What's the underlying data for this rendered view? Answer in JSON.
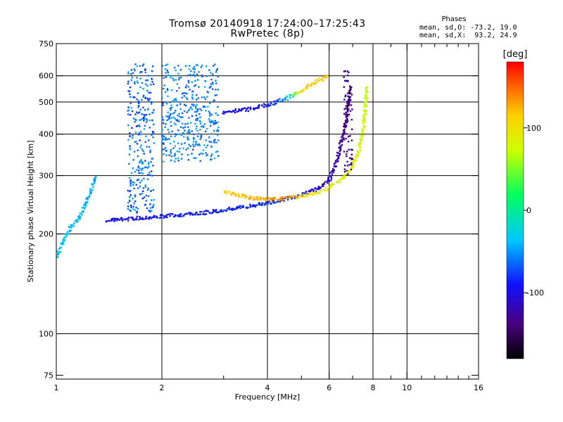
{
  "header": {
    "title": "Tromsø 20140918 17:24:00–17:25:43",
    "subtitle": "RwPretec (8p)"
  },
  "stats": {
    "heading": "Phases",
    "line_o": "mean, sd,O: -73.2, 19.0",
    "line_x": "mean, sd,X:  93.2, 24.9"
  },
  "colorbar": {
    "label": "[deg]",
    "ticks": [
      100,
      0,
      -100
    ],
    "range": [
      -180,
      180
    ]
  },
  "chart_data": {
    "type": "scatter",
    "xlabel": "Frequency [MHz]",
    "ylabel": "Stationary phase Virtual Height [km]",
    "x_scale": "log",
    "y_scale": "log",
    "xlim": [
      1,
      16
    ],
    "ylim": [
      73,
      750
    ],
    "x_ticks": [
      1,
      2,
      4,
      6,
      8,
      10,
      16
    ],
    "x_grid": [
      2,
      4,
      6,
      8,
      10
    ],
    "x_minor": [
      3,
      5,
      7,
      9,
      11,
      12,
      13,
      14,
      15
    ],
    "y_ticks": [
      75,
      100,
      200,
      300,
      400,
      500,
      600,
      750
    ],
    "y_grid": [
      100,
      200,
      300,
      400,
      500,
      600
    ],
    "color_variable": "phase (deg)",
    "traces": [
      {
        "name": "O-mode F-trace",
        "x": [
          1.4,
          1.6,
          2.0,
          2.5,
          3.0,
          3.5,
          4.0,
          4.5,
          5.0,
          5.5,
          6.0,
          6.3,
          6.5,
          6.7,
          6.8,
          6.9
        ],
        "y": [
          220,
          222,
          226,
          230,
          236,
          242,
          248,
          254,
          262,
          272,
          290,
          330,
          380,
          430,
          500,
          560
        ],
        "phase": [
          -95,
          -95,
          -90,
          -88,
          -85,
          -82,
          -80,
          -78,
          -95,
          -105,
          -110,
          -120,
          -130,
          -140,
          -145,
          -150
        ]
      },
      {
        "name": "X-mode F-trace",
        "x": [
          3.0,
          3.5,
          4.0,
          4.5,
          5.0,
          5.5,
          6.0,
          6.5,
          7.0,
          7.3,
          7.5,
          7.6,
          7.7
        ],
        "y": [
          268,
          258,
          254,
          256,
          260,
          266,
          276,
          292,
          320,
          360,
          420,
          480,
          560
        ],
        "phase": [
          110,
          120,
          130,
          140,
          100,
          95,
          90,
          85,
          80,
          78,
          75,
          72,
          70
        ]
      },
      {
        "name": "Low-frequency E/Es trace",
        "x": [
          1.0,
          1.05,
          1.1,
          1.15,
          1.2,
          1.3
        ],
        "y": [
          170,
          190,
          210,
          220,
          240,
          300
        ],
        "phase": [
          -30,
          -35,
          -40,
          -38,
          -45,
          -42
        ]
      },
      {
        "name": "Upper oblique echo",
        "x": [
          3.0,
          3.5,
          4.0,
          4.5,
          5.0,
          5.5,
          6.0
        ],
        "y": [
          465,
          475,
          490,
          510,
          540,
          575,
          600
        ],
        "phase": [
          -100,
          -95,
          -90,
          -60,
          110,
          115,
          120
        ]
      }
    ],
    "clusters": [
      {
        "name": "Spread echo column",
        "x_range": [
          1.6,
          1.9
        ],
        "y_range": [
          230,
          650
        ],
        "phase": [
          -85,
          -40
        ]
      },
      {
        "name": "Echo band 2.0–3.0 MHz",
        "x_range": [
          2.0,
          2.9
        ],
        "y_range": [
          330,
          650
        ],
        "phase": [
          -75,
          -40
        ]
      },
      {
        "name": "Near-vertical dots 6.6–7.0 MHz",
        "x_range": [
          6.6,
          7.0
        ],
        "y_range": [
          300,
          640
        ],
        "phase": [
          -150,
          -110
        ]
      }
    ]
  }
}
